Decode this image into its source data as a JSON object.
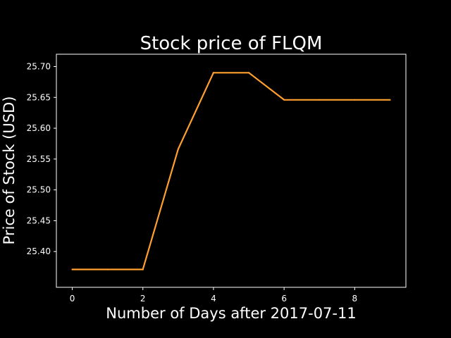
{
  "chart_data": {
    "type": "line",
    "title": "Stock price of FLQM",
    "xlabel": "Number of Days after 2017-07-11",
    "ylabel": "Price of Stock (USD)",
    "x": [
      0,
      1,
      2,
      3,
      4,
      5,
      6,
      7,
      8,
      9
    ],
    "series": [
      {
        "values": [
          25.371,
          25.371,
          25.371,
          25.566,
          25.69,
          25.69,
          25.646,
          25.646,
          25.646,
          25.646
        ]
      }
    ],
    "xlim": [
      -0.45,
      9.45
    ],
    "ylim": [
      25.342,
      25.72
    ],
    "xticks": [
      0,
      2,
      4,
      6,
      8
    ],
    "xtick_labels": [
      "0",
      "2",
      "4",
      "6",
      "8"
    ],
    "yticks": [
      25.4,
      25.45,
      25.5,
      25.55,
      25.6,
      25.65,
      25.7
    ],
    "ytick_labels": [
      "25.40",
      "25.45",
      "25.50",
      "25.55",
      "25.60",
      "25.65",
      "25.70"
    ],
    "grid": false,
    "legend": false
  },
  "colors": {
    "background": "#000000",
    "axes": "#ffffff",
    "text": "#ffffff",
    "line": "#ff9f2f"
  }
}
